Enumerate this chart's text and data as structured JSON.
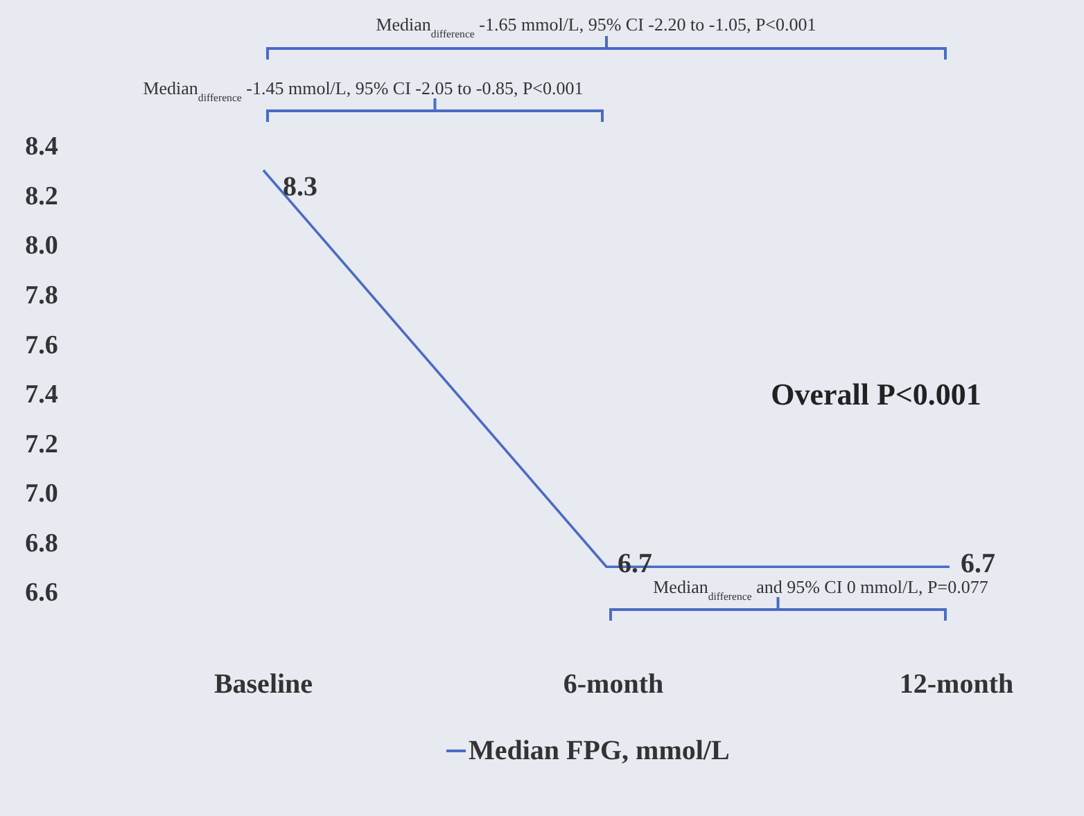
{
  "chart_data": {
    "type": "line",
    "categories": [
      "Baseline",
      "6-month",
      "12-month"
    ],
    "series": [
      {
        "name": "Median FPG, mmol/L",
        "color": "#4a6cc4",
        "values": [
          8.3,
          6.7,
          6.7
        ]
      }
    ],
    "ylim": [
      6.6,
      8.4
    ],
    "yticks": [
      {
        "value": 8.4,
        "label": "8.4"
      },
      {
        "value": 8.2,
        "label": "8.2"
      },
      {
        "value": 8.0,
        "label": "8.0"
      },
      {
        "value": 7.8,
        "label": "7.8"
      },
      {
        "value": 7.6,
        "label": "7.6"
      },
      {
        "value": 7.4,
        "label": "7.4"
      },
      {
        "value": 7.2,
        "label": "7.2"
      },
      {
        "value": 7.0,
        "label": "7.0"
      },
      {
        "value": 6.8,
        "label": "6.8"
      },
      {
        "value": 6.6,
        "label": "6.6"
      }
    ],
    "data_labels": true,
    "grid": false,
    "legend": "bottom",
    "marker": "none",
    "line_style": "solid",
    "annotations": [
      "Median$_{difference}$ -1.65 mmol/L, 95% CI -2.20 to -1.05, P<0.001",
      "Median$_{difference}$ -1.45 mmol/L, 95% CI -2.05 to -0.85, P<0.001",
      "Median$_{difference}$ and 95% CI 0 mmol/L, P=0.077",
      "Overall P<0.001"
    ]
  }
}
